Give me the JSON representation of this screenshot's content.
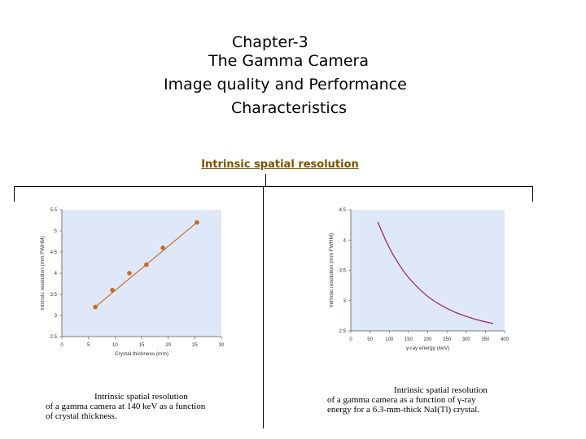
{
  "title": {
    "line1": "Chapter-3",
    "line2": "The Gamma Camera",
    "line3": "Image quality and Performance",
    "line4": "Characteristics"
  },
  "section_link": "Intrinsic spatial resolution",
  "colors": {
    "plot_bg": "#dfe8f8",
    "series_left": "#c8692a",
    "series_right": "#a0267e",
    "link": "#7a5200"
  },
  "chart_data": [
    {
      "type": "scatter",
      "xlabel": "Crystal thickness (mm)",
      "ylabel": "Intrinsic resolution (mm FWHM)",
      "xlim": [
        0,
        30
      ],
      "ylim": [
        2.5,
        5.5
      ],
      "xticks": [
        "0",
        "5",
        "10",
        "15",
        "20",
        "25",
        "30"
      ],
      "yticks": [
        "2.5",
        "3",
        "3.5",
        "4",
        "4.5",
        "5",
        "5.5"
      ],
      "points": [
        {
          "x": 6.3,
          "y": 3.2
        },
        {
          "x": 9.5,
          "y": 3.6
        },
        {
          "x": 12.7,
          "y": 4.0
        },
        {
          "x": 15.9,
          "y": 4.2
        },
        {
          "x": 19.0,
          "y": 4.6
        },
        {
          "x": 25.4,
          "y": 5.2
        }
      ],
      "caption": [
        "Intrinsic spatial resolution",
        "of a gamma camera at 140 keV as a function",
        "of crystal thickness."
      ]
    },
    {
      "type": "line",
      "xlabel": "γ-ray energy (keV)",
      "ylabel": "Intrinsic resolution (mm FWHM)",
      "xlim": [
        0,
        400
      ],
      "ylim": [
        2.5,
        4.5
      ],
      "xticks": [
        "0",
        "50",
        "100",
        "150",
        "200",
        "250",
        "300",
        "350",
        "400"
      ],
      "yticks": [
        "2.5",
        "3",
        "3.5",
        "4",
        "4.5"
      ],
      "points": [
        {
          "x": 70,
          "y": 4.3
        },
        {
          "x": 90,
          "y": 4.0
        },
        {
          "x": 110,
          "y": 3.75
        },
        {
          "x": 130,
          "y": 3.55
        },
        {
          "x": 150,
          "y": 3.38
        },
        {
          "x": 170,
          "y": 3.24
        },
        {
          "x": 190,
          "y": 3.12
        },
        {
          "x": 210,
          "y": 3.02
        },
        {
          "x": 230,
          "y": 2.94
        },
        {
          "x": 250,
          "y": 2.87
        },
        {
          "x": 270,
          "y": 2.81
        },
        {
          "x": 290,
          "y": 2.76
        },
        {
          "x": 310,
          "y": 2.72
        },
        {
          "x": 330,
          "y": 2.68
        },
        {
          "x": 350,
          "y": 2.65
        },
        {
          "x": 370,
          "y": 2.62
        }
      ],
      "caption": [
        "Intrinsic spatial resolution",
        "of a gamma camera as a function of γ-ray",
        "energy for a 6.3-mm-thick NaI(Tl) crystal."
      ]
    }
  ]
}
